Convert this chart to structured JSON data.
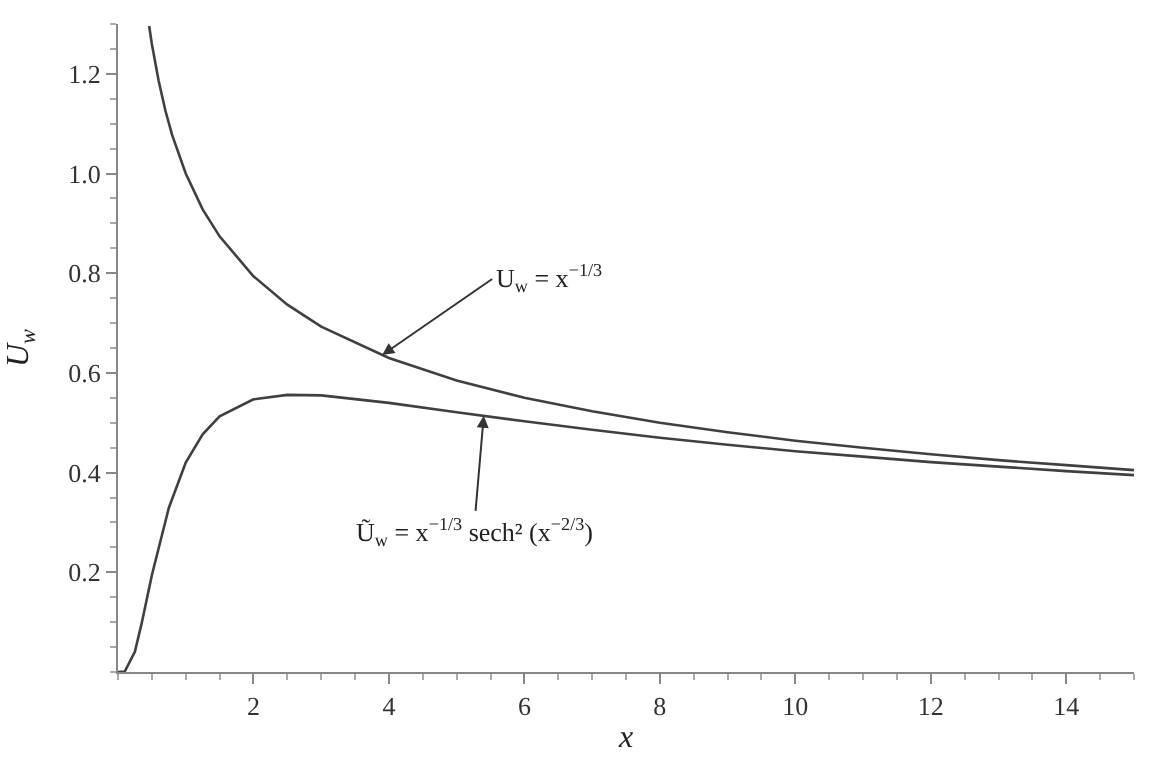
{
  "chart_data": {
    "type": "line",
    "xlabel": "x",
    "ylabel": "U$_{w}$",
    "xlim": [
      0,
      15
    ],
    "ylim": [
      0,
      1.3
    ],
    "xticks": [
      2,
      4,
      6,
      8,
      10,
      12,
      14
    ],
    "yticks": [
      0.2,
      0.4,
      0.6,
      0.8,
      {
        "value": 1.0,
        "label": "1.0"
      },
      1.2
    ],
    "marker": "none",
    "line_style": "solid",
    "series": [
      {
        "color": "#404040",
        "x": [
          0.46,
          0.5,
          0.6,
          0.7,
          0.8,
          1,
          1.25,
          1.5,
          2,
          2.5,
          3,
          4,
          5,
          6,
          7,
          8,
          9,
          10,
          11,
          12,
          13,
          14,
          15
        ],
        "values": [
          1.296,
          1.26,
          1.186,
          1.126,
          1.077,
          1.0,
          0.928,
          0.874,
          0.794,
          0.737,
          0.693,
          0.63,
          0.585,
          0.55,
          0.523,
          0.5,
          0.481,
          0.464,
          0.45,
          0.437,
          0.425,
          0.415,
          0.405
        ]
      },
      {
        "color": "#404040",
        "x": [
          0,
          0.1,
          0.25,
          0.35,
          0.5,
          0.75,
          1,
          1.25,
          1.5,
          2,
          2.5,
          3,
          4,
          5,
          6,
          7,
          8,
          9,
          10,
          11,
          12,
          13,
          14,
          15
        ],
        "values": [
          0,
          0.001,
          0.041,
          0.098,
          0.194,
          0.329,
          0.42,
          0.477,
          0.513,
          0.547,
          0.556,
          0.555,
          0.54,
          0.521,
          0.503,
          0.486,
          0.47,
          0.456,
          0.443,
          0.432,
          0.421,
          0.412,
          0.403,
          0.395
        ]
      }
    ],
    "annotations": [
      {
        "text": "U$_{w}$ = x$^{−1/3}$",
        "x": 3.9,
        "y": 0.636
      },
      {
        "text": "Ũ$_{w}$ = x$^{−1/3}$ sech² (x$^{−2/3}$)",
        "x": 5.4,
        "y": 0.514
      }
    ]
  }
}
